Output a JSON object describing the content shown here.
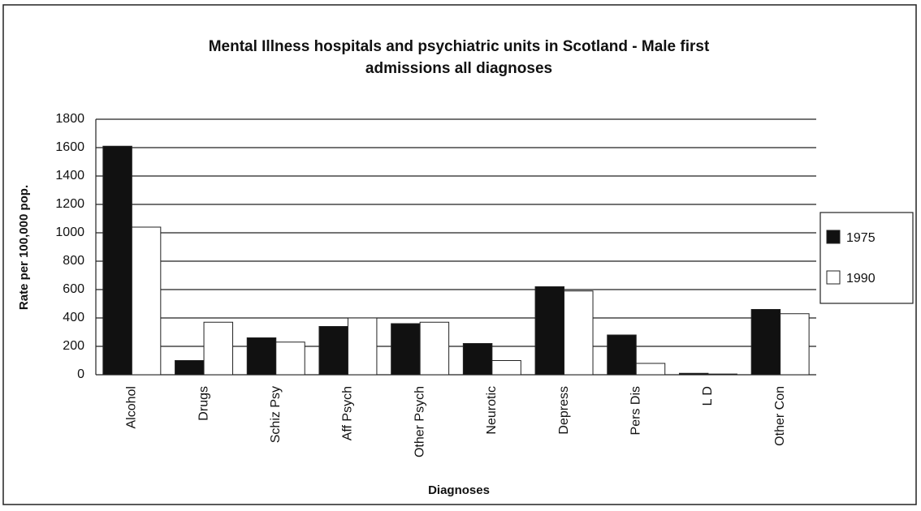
{
  "chart_data": {
    "type": "bar",
    "title": "Mental Illness hospitals and psychiatric units in Scotland - Male first admissions all diagnoses",
    "x_label": "Diagnoses",
    "y_label": "Rate per 100,000 pop.",
    "categories": [
      "Alcohol",
      "Drugs",
      "Schiz Psy",
      "Aff Psych",
      "Other Psych",
      "Neurotic",
      "Depress",
      "Pers Dis",
      "L D",
      "Other Con"
    ],
    "series": [
      {
        "name": "1975",
        "color": "#111111",
        "values": [
          1610,
          100,
          260,
          340,
          360,
          220,
          620,
          280,
          10,
          460
        ]
      },
      {
        "name": "1990",
        "color": "#ffffff",
        "values": [
          1040,
          370,
          230,
          400,
          370,
          100,
          590,
          80,
          5,
          430
        ]
      }
    ],
    "ylim": [
      0,
      1800
    ],
    "yticks": [
      0,
      200,
      400,
      600,
      800,
      1000,
      1200,
      1400,
      1600,
      1800
    ],
    "grid": true,
    "legend": "right"
  }
}
